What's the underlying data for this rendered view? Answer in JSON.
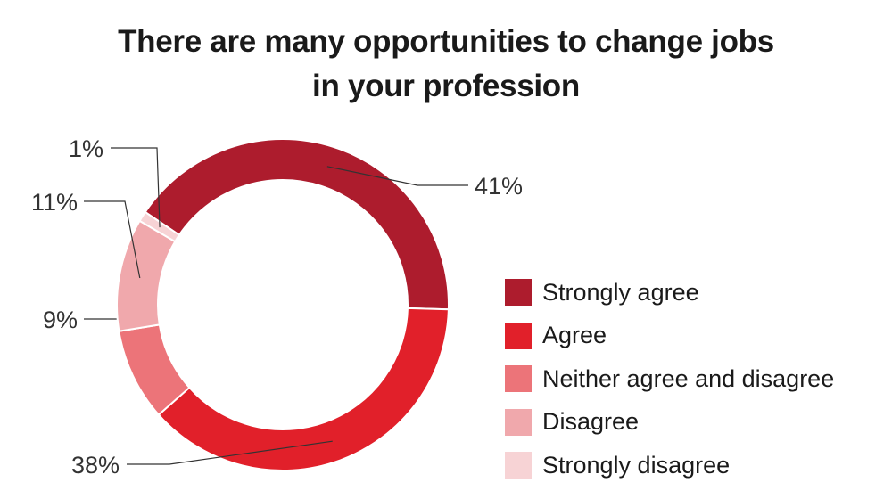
{
  "chart_data": {
    "type": "pie",
    "title_lines": [
      "There are many opportunities to change jobs",
      "in your profession"
    ],
    "categories": [
      "Strongly agree",
      "Agree",
      "Neither agree and disagree",
      "Disagree",
      "Strongly disagree"
    ],
    "values": [
      41,
      38,
      9,
      11,
      1
    ],
    "value_labels": [
      "41%",
      "38%",
      "9%",
      "11%",
      "1%"
    ],
    "colors": [
      "#ad1c2d",
      "#e1202a",
      "#ec7479",
      "#f0a8ac",
      "#f7d3d5"
    ],
    "donut": true,
    "legend_position": "right"
  }
}
